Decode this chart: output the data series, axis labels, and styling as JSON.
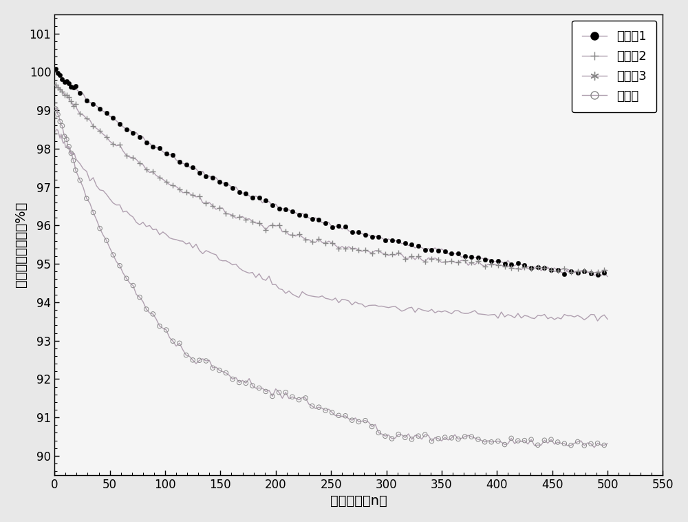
{
  "xlabel": "循环次数（n）",
  "ylabel": "放电容量保持率（%）",
  "xlim": [
    0,
    550
  ],
  "ylim": [
    89.5,
    101.5
  ],
  "xticks": [
    0,
    50,
    100,
    150,
    200,
    250,
    300,
    350,
    400,
    450,
    500,
    550
  ],
  "yticks": [
    90,
    91,
    92,
    93,
    94,
    95,
    96,
    97,
    98,
    99,
    100,
    101
  ],
  "legend_labels": [
    "实施例1",
    "实施例2",
    "实施例3",
    "对比例"
  ],
  "line_color": "#b0a0b0",
  "bg_color": "#f0f0f0",
  "marker_color_1": "#000000",
  "marker_color_234": "#888888"
}
